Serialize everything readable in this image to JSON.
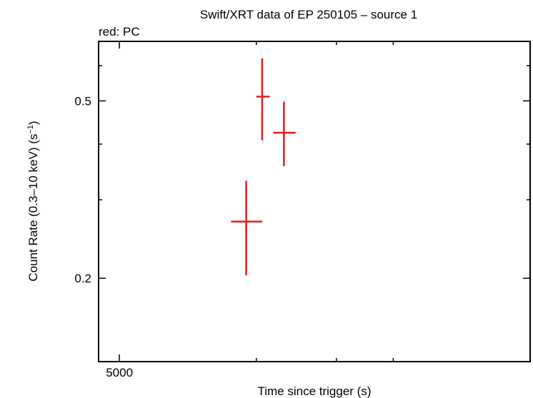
{
  "chart_data": {
    "type": "scatter",
    "title": "Swift/XRT data of EP 250105 – source 1",
    "subtitle": "red: PC",
    "xlabel": "Time since trigger (s)",
    "ylabel": "Count Rate (0.3–10 keV) (s",
    "ylabel_sup": "−1",
    "ylabel_end": ")",
    "x_scale": "log",
    "y_scale": "log",
    "xlim": [
      4500,
      40000
    ],
    "ylim": [
      0.13,
      0.68
    ],
    "x_ticks": [
      {
        "value": 5000,
        "label": "5000"
      }
    ],
    "x_minor_ticks": [
      10000,
      15000,
      20000
    ],
    "y_ticks": [
      {
        "value": 0.2,
        "label": "0.2"
      },
      {
        "value": 0.5,
        "label": "0.5"
      }
    ],
    "y_minor_ticks": [
      0.3,
      0.4,
      0.6
    ],
    "grid": false,
    "color": "#e41a1c",
    "series": [
      {
        "points": [
          {
            "x": 9500,
            "xerr": [
              700,
              800
            ],
            "y": 0.268,
            "yerr": [
              0.065,
              0.063
            ]
          },
          {
            "x": 10300,
            "xerr": [
              300,
              400
            ],
            "y": 0.511,
            "yerr": [
              0.103,
              0.112
            ]
          },
          {
            "x": 11500,
            "xerr": [
              600,
              700
            ],
            "y": 0.424,
            "yerr": [
              0.067,
              0.074
            ]
          }
        ]
      }
    ]
  }
}
